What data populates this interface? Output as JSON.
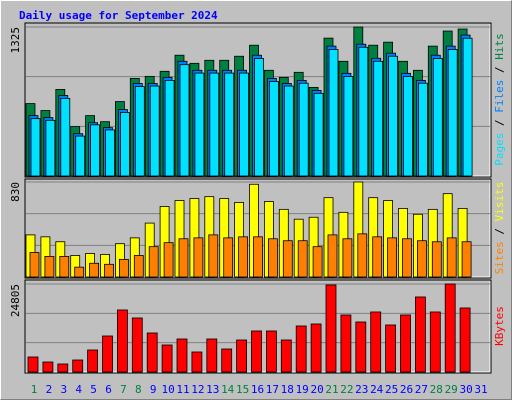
{
  "chart_data": [
    {
      "type": "bar",
      "title": "Daily usage for September 2024",
      "legend_separator": " / ",
      "ylim": [
        0,
        1325
      ],
      "yticks": [
        1325
      ],
      "series": [
        {
          "name": "Hits",
          "color": "#008040",
          "values": [
            644,
            582,
            770,
            439,
            537,
            483,
            662,
            868,
            886,
            931,
            1074,
            1002,
            1029,
            1029,
            1065,
            1163,
            940,
            877,
            922,
            788,
            1226,
            1020,
            1325,
            1163,
            1190,
            1020,
            940,
            1155,
            1289,
            1307,
            null
          ]
        },
        {
          "name": "Files",
          "color": "#0080ff",
          "values": [
            537,
            519,
            716,
            376,
            474,
            430,
            591,
            823,
            823,
            877,
            1020,
            940,
            940,
            940,
            940,
            1074,
            868,
            823,
            850,
            761,
            1155,
            913,
            1172,
            1047,
            1092,
            913,
            850,
            1074,
            1155,
            1253,
            null
          ]
        },
        {
          "name": "Pages",
          "color": "#00e0ff",
          "values": [
            510,
            495,
            690,
            355,
            455,
            410,
            565,
            795,
            800,
            850,
            990,
            915,
            915,
            915,
            915,
            1045,
            840,
            800,
            825,
            735,
            1125,
            885,
            1145,
            1020,
            1065,
            885,
            825,
            1045,
            1125,
            1225,
            null
          ]
        }
      ]
    },
    {
      "type": "bar",
      "legend_separator": " / ",
      "ylim": [
        0,
        830
      ],
      "yticks": [
        830
      ],
      "series": [
        {
          "name": "Visits",
          "color": "#ffff00",
          "values": [
            368,
            351,
            308,
            188,
            205,
            197,
            291,
            342,
            471,
            616,
            668,
            685,
            702,
            685,
            651,
            810,
            659,
            591,
            505,
            522,
            693,
            565,
            830,
            693,
            668,
            599,
            548,
            591,
            728,
            599,
            null
          ]
        },
        {
          "name": "Sites",
          "color": "#ff8000",
          "values": [
            214,
            180,
            180,
            86,
            120,
            111,
            154,
            188,
            265,
            300,
            334,
            342,
            368,
            342,
            351,
            351,
            334,
            317,
            317,
            265,
            368,
            334,
            377,
            351,
            342,
            334,
            317,
            308,
            342,
            308,
            null
          ]
        }
      ]
    },
    {
      "type": "bar",
      "ylim": [
        0,
        24805
      ],
      "yticks": [
        24805
      ],
      "categories": [
        "1",
        "2",
        "3",
        "4",
        "5",
        "6",
        "7",
        "8",
        "9",
        "10",
        "11",
        "12",
        "13",
        "14",
        "15",
        "16",
        "17",
        "18",
        "19",
        "20",
        "21",
        "22",
        "23",
        "24",
        "25",
        "26",
        "27",
        "28",
        "29",
        "30",
        "31"
      ],
      "category_colors": [
        "#008040",
        "#0000ff",
        "#0000ff",
        "#0000ff",
        "#0000ff",
        "#0000ff",
        "#008040",
        "#008040",
        "#0000ff",
        "#0000ff",
        "#0000ff",
        "#0000ff",
        "#0000ff",
        "#008040",
        "#008040",
        "#0000ff",
        "#0000ff",
        "#0000ff",
        "#0000ff",
        "#0000ff",
        "#008040",
        "#008040",
        "#0000ff",
        "#0000ff",
        "#0000ff",
        "#0000ff",
        "#0000ff",
        "#008040",
        "#008040",
        "#0000ff",
        "#0000ff"
      ],
      "series": [
        {
          "name": "KBytes",
          "color": "#ff0000",
          "values": [
            4230,
            2820,
            2256,
            3384,
            6204,
            10152,
            17484,
            15228,
            10998,
            7614,
            9306,
            5640,
            9306,
            6486,
            9024,
            11562,
            11562,
            9024,
            12972,
            13536,
            24534,
            16074,
            14100,
            16920,
            13254,
            16074,
            21150,
            16920,
            24805,
            18048,
            null
          ]
        }
      ]
    }
  ]
}
